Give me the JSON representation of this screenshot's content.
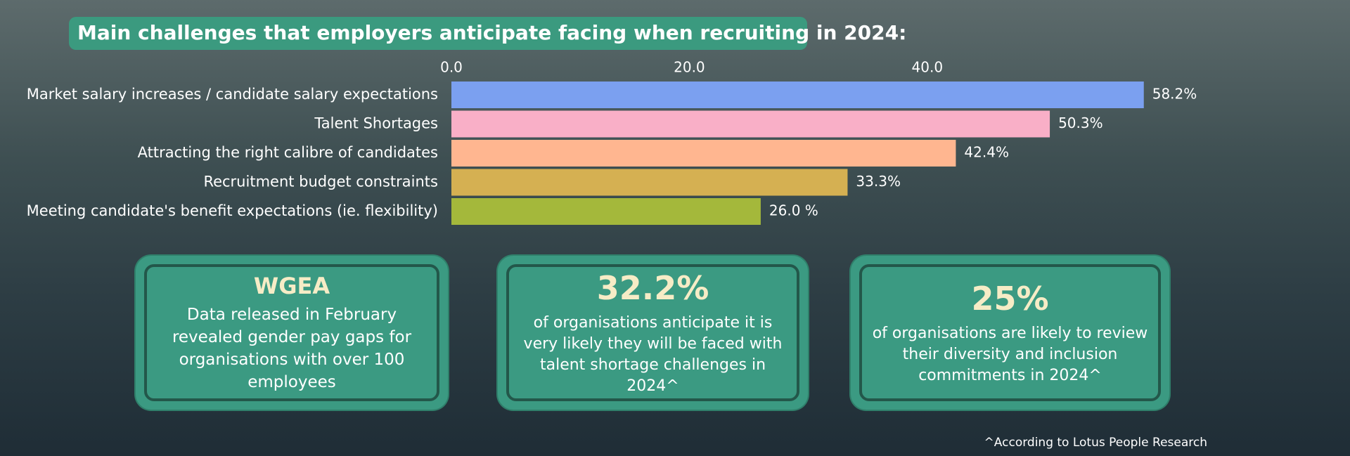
{
  "chart_data": {
    "type": "bar",
    "orientation": "horizontal",
    "title": "Main challenges that employers anticipate facing when recruiting in 2024:",
    "categories": [
      "Market salary increases / candidate salary expectations",
      "Talent Shortages",
      "Attracting the right calibre of candidates",
      "Recruitment budget constraints",
      "Meeting candidate's benefit expectations (ie. flexibility)"
    ],
    "values": [
      58.2,
      50.3,
      42.4,
      33.3,
      26.0
    ],
    "value_labels": [
      "58.2%",
      "50.3%",
      "42.4%",
      "33.3%",
      "26.0 %"
    ],
    "colors": [
      "#7ba0f0",
      "#f9afc7",
      "#ffb690",
      "#d5b052",
      "#a4b83b"
    ],
    "xlim": [
      0,
      60
    ],
    "xticks": [
      {
        "value": 0,
        "label": "0.0"
      },
      {
        "value": 20,
        "label": "20.0"
      },
      {
        "value": 40,
        "label": "40.0"
      }
    ]
  },
  "cards": [
    {
      "heading": "WGEA",
      "text": "Data released in February revealed gender pay gaps for organisations with over 100 employees"
    },
    {
      "heading": "32.2%",
      "text": "of organisations anticipate it is very likely they will be faced with talent shortage challenges in 2024^"
    },
    {
      "heading": "25%",
      "text": "of organisations are likely to review their diversity and inclusion commitments in 2024^"
    }
  ],
  "footnote": "^According to Lotus People Research"
}
